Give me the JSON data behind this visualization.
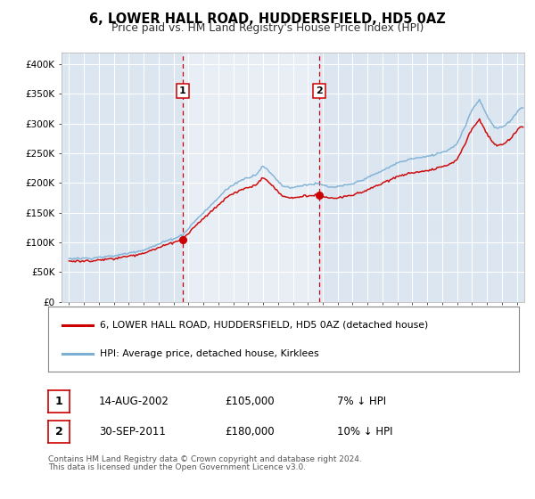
{
  "title": "6, LOWER HALL ROAD, HUDDERSFIELD, HD5 0AZ",
  "subtitle": "Price paid vs. HM Land Registry's House Price Index (HPI)",
  "legend_line1": "6, LOWER HALL ROAD, HUDDERSFIELD, HD5 0AZ (detached house)",
  "legend_line2": "HPI: Average price, detached house, Kirklees",
  "footnote1": "Contains HM Land Registry data © Crown copyright and database right 2024.",
  "footnote2": "This data is licensed under the Open Government Licence v3.0.",
  "sale1_date": "14-AUG-2002",
  "sale1_price": "£105,000",
  "sale1_hpi": "7% ↓ HPI",
  "sale2_date": "30-SEP-2011",
  "sale2_price": "£180,000",
  "sale2_hpi": "10% ↓ HPI",
  "sale1_year": 2002.62,
  "sale1_value": 105000,
  "sale2_year": 2011.75,
  "sale2_value": 180000,
  "ylim": [
    0,
    420000
  ],
  "xlim_start": 1994.5,
  "xlim_end": 2025.5,
  "red_color": "#cc0000",
  "blue_color": "#7bafd4",
  "bg_color": "#dce6f1",
  "bg_between_color": "#e8eef8",
  "grid_color": "#ffffff",
  "vline_color": "#cc0000",
  "ytick_values": [
    0,
    50000,
    100000,
    150000,
    200000,
    250000,
    300000,
    350000,
    400000
  ]
}
